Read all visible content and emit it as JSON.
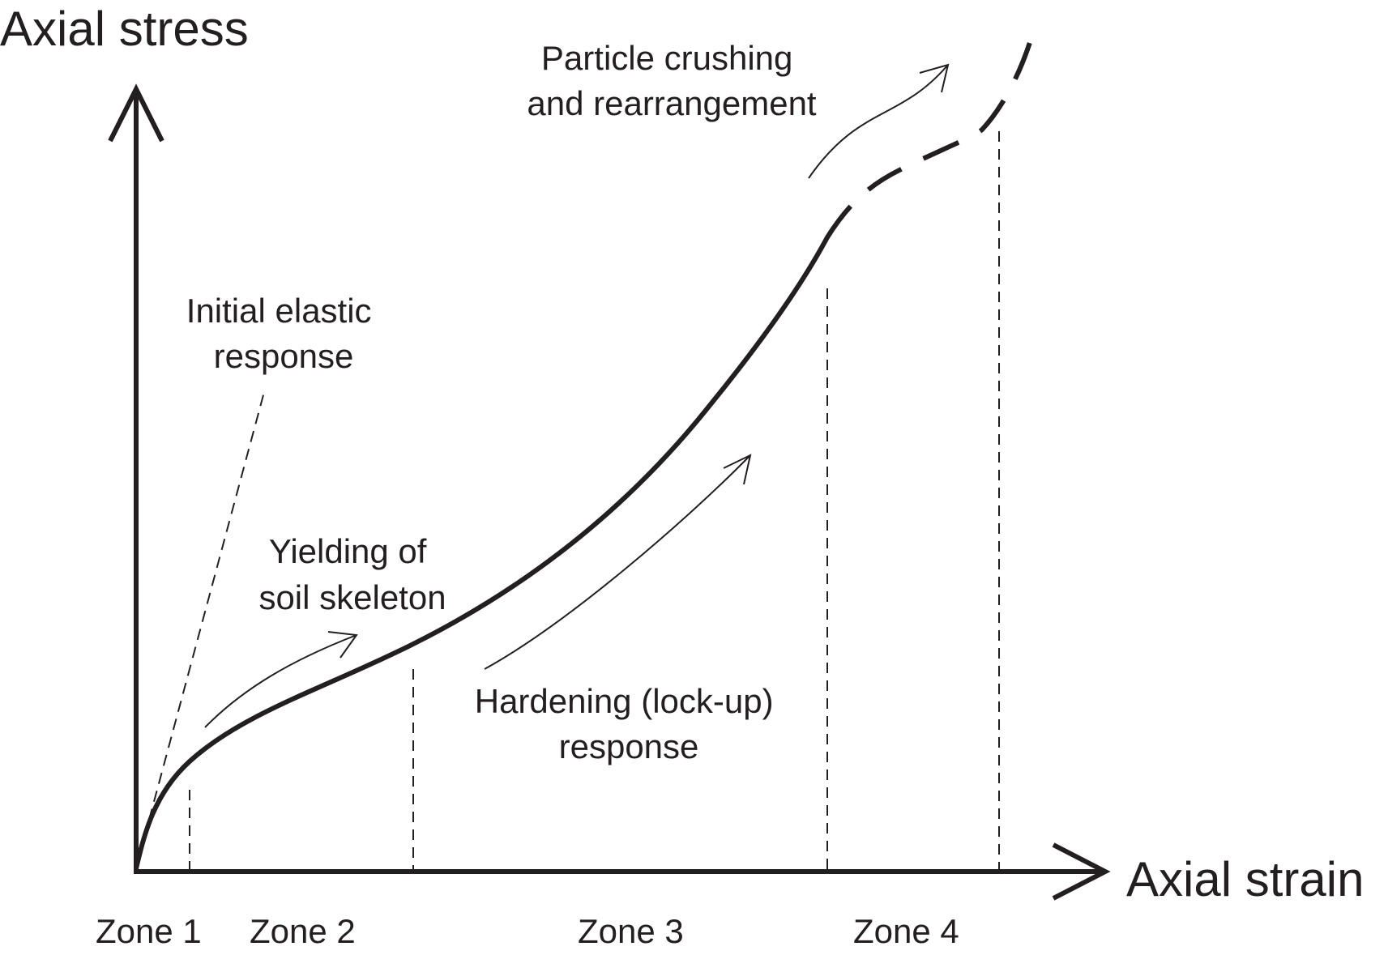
{
  "axes": {
    "y_title": "Axial stress",
    "x_title": "Axial strain"
  },
  "annotations": {
    "elastic": [
      "Initial elastic",
      "response"
    ],
    "yielding": [
      "Yielding of",
      "soil skeleton"
    ],
    "hardening": [
      "Hardening (lock-up)",
      "response"
    ],
    "crushing": [
      "Particle crushing",
      "and rearrangement"
    ]
  },
  "zones": [
    "Zone 1",
    "Zone 2",
    "Zone 3",
    "Zone 4"
  ],
  "colors": {
    "ink": "#231f20",
    "background": "#ffffff"
  }
}
